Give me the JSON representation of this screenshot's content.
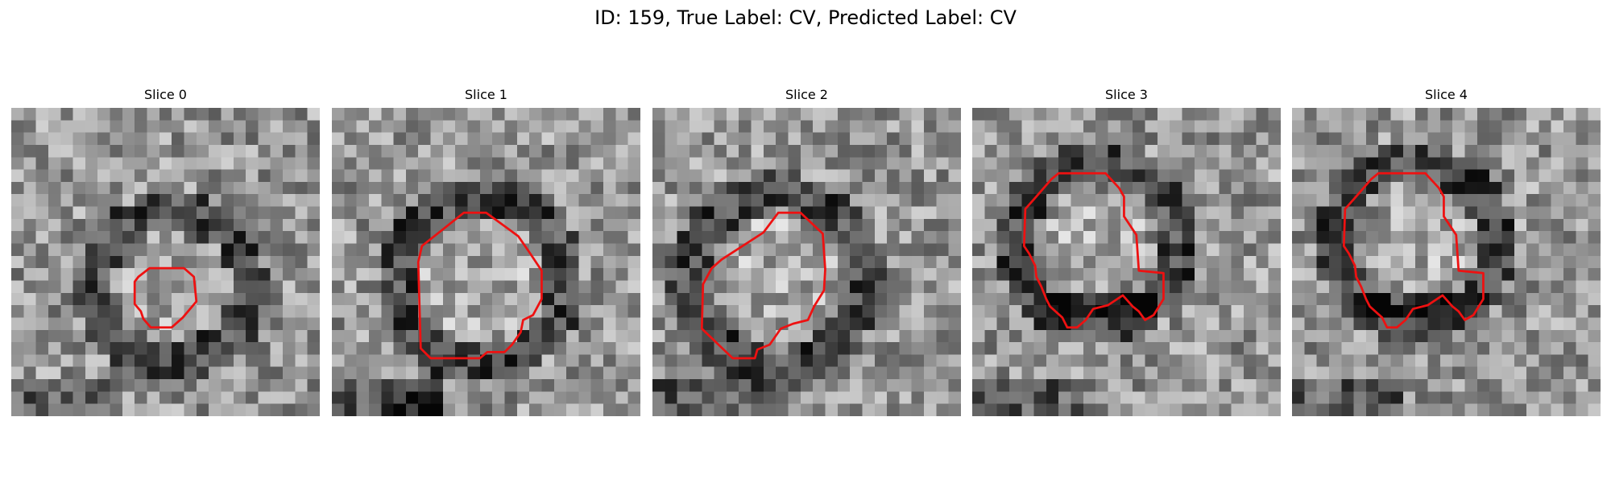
{
  "figure": {
    "title": "ID: 159, True Label: CV, Predicted Label: CV",
    "contour_color": "#ee1111",
    "colormap": "gray",
    "slices": [
      {
        "label": "Slice 0",
        "contour": [
          [
            10.3,
            13.7
          ],
          [
            11.2,
            13.0
          ],
          [
            14.0,
            13.0
          ],
          [
            14.8,
            13.7
          ],
          [
            15.0,
            15.7
          ],
          [
            13.9,
            17.0
          ],
          [
            13.0,
            17.8
          ],
          [
            11.3,
            17.8
          ],
          [
            10.7,
            17.1
          ],
          [
            10.5,
            16.5
          ],
          [
            10.0,
            15.9
          ],
          [
            10.0,
            14.1
          ]
        ]
      },
      {
        "label": "Slice 1",
        "contour": [
          [
            7.3,
            11.2
          ],
          [
            10.7,
            8.5
          ],
          [
            12.5,
            8.5
          ],
          [
            15.1,
            10.4
          ],
          [
            16.0,
            11.7
          ],
          [
            17.0,
            13.2
          ],
          [
            17.0,
            15.5
          ],
          [
            16.3,
            16.8
          ],
          [
            15.5,
            17.2
          ],
          [
            15.3,
            18.2
          ],
          [
            14.6,
            19.2
          ],
          [
            14.0,
            19.8
          ],
          [
            12.6,
            19.8
          ],
          [
            12.0,
            20.3
          ],
          [
            8.0,
            20.3
          ],
          [
            7.2,
            19.5
          ],
          [
            7.0,
            12.5
          ]
        ]
      },
      {
        "label": "Slice 2",
        "contour": [
          [
            9.0,
            10.1
          ],
          [
            10.2,
            8.5
          ],
          [
            12.0,
            8.5
          ],
          [
            13.8,
            10.2
          ],
          [
            14.0,
            13.1
          ],
          [
            13.9,
            14.8
          ],
          [
            13.1,
            16.1
          ],
          [
            12.6,
            17.2
          ],
          [
            11.4,
            17.5
          ],
          [
            10.4,
            17.9
          ],
          [
            9.5,
            19.2
          ],
          [
            8.5,
            19.6
          ],
          [
            8.3,
            20.3
          ],
          [
            6.5,
            20.3
          ],
          [
            4.0,
            17.9
          ],
          [
            4.1,
            14.3
          ],
          [
            4.8,
            13.0
          ],
          [
            5.6,
            12.3
          ]
        ]
      },
      {
        "label": "Slice 3",
        "contour": [
          [
            6.4,
            5.8
          ],
          [
            7.0,
            5.3
          ],
          [
            10.8,
            5.3
          ],
          [
            11.9,
            6.5
          ],
          [
            12.3,
            7.2
          ],
          [
            12.3,
            8.8
          ],
          [
            13.3,
            10.3
          ],
          [
            13.5,
            13.2
          ],
          [
            15.5,
            13.4
          ],
          [
            15.5,
            15.5
          ],
          [
            14.7,
            16.8
          ],
          [
            14.0,
            17.2
          ],
          [
            13.5,
            16.5
          ],
          [
            13.0,
            16.1
          ],
          [
            12.2,
            15.2
          ],
          [
            11.0,
            16.0
          ],
          [
            9.8,
            16.3
          ],
          [
            9.2,
            17.2
          ],
          [
            8.5,
            17.8
          ],
          [
            7.7,
            17.8
          ],
          [
            7.3,
            17.0
          ],
          [
            6.3,
            16.1
          ],
          [
            6.0,
            15.5
          ],
          [
            5.6,
            14.5
          ],
          [
            5.2,
            13.7
          ],
          [
            5.1,
            12.8
          ],
          [
            4.6,
            11.8
          ],
          [
            4.2,
            11.2
          ],
          [
            4.3,
            8.2
          ],
          [
            5.1,
            7.3
          ]
        ]
      },
      {
        "label": "Slice 4",
        "contour": [
          [
            6.4,
            5.8
          ],
          [
            7.0,
            5.3
          ],
          [
            10.8,
            5.3
          ],
          [
            11.9,
            6.5
          ],
          [
            12.3,
            7.2
          ],
          [
            12.3,
            8.8
          ],
          [
            13.3,
            10.3
          ],
          [
            13.5,
            13.2
          ],
          [
            15.5,
            13.4
          ],
          [
            15.5,
            15.5
          ],
          [
            14.7,
            16.8
          ],
          [
            14.0,
            17.2
          ],
          [
            13.5,
            16.5
          ],
          [
            13.0,
            16.1
          ],
          [
            12.2,
            15.2
          ],
          [
            11.0,
            16.0
          ],
          [
            9.8,
            16.3
          ],
          [
            9.2,
            17.2
          ],
          [
            8.5,
            17.8
          ],
          [
            7.7,
            17.8
          ],
          [
            7.3,
            17.0
          ],
          [
            6.3,
            16.1
          ],
          [
            6.0,
            15.5
          ],
          [
            5.6,
            14.5
          ],
          [
            5.2,
            13.7
          ],
          [
            5.1,
            12.8
          ],
          [
            4.6,
            11.8
          ],
          [
            4.2,
            11.2
          ],
          [
            4.3,
            8.2
          ],
          [
            5.1,
            7.3
          ]
        ]
      }
    ]
  }
}
